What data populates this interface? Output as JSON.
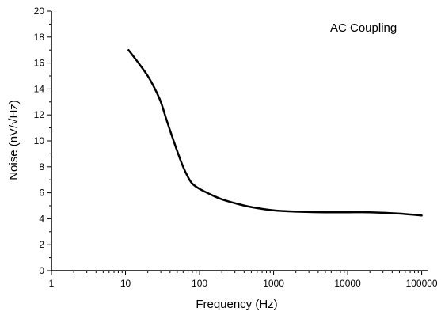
{
  "chart_data": {
    "type": "line",
    "title": "",
    "annotation": "AC Coupling",
    "xlabel": "Frequency (Hz)",
    "ylabel": "Noise (nV/√Hz)",
    "xscale": "log",
    "xlim": [
      1,
      120000
    ],
    "ylim": [
      0,
      20
    ],
    "x_ticks": [
      1,
      10,
      100,
      1000,
      10000,
      100000
    ],
    "x_tick_labels": [
      "1",
      "10",
      "100",
      "1000",
      "10000",
      "100000"
    ],
    "y_ticks": [
      0,
      2,
      4,
      6,
      8,
      10,
      12,
      14,
      16,
      18,
      20
    ],
    "y_tick_labels": [
      "0",
      "2",
      "4",
      "6",
      "8",
      "10",
      "12",
      "14",
      "16",
      "18",
      "20"
    ],
    "grid": false,
    "legend": "none",
    "line_color": "#000000",
    "series": [
      {
        "x": [
          11,
          15,
          20,
          25,
          30,
          35,
          40,
          50,
          60,
          70,
          80,
          100,
          150,
          200,
          300,
          500,
          1000,
          2000,
          5000,
          10000,
          20000,
          50000,
          100000
        ],
        "y": [
          17.0,
          16.0,
          15.0,
          14.0,
          13.0,
          11.8,
          10.8,
          9.2,
          8.0,
          7.2,
          6.7,
          6.3,
          5.8,
          5.5,
          5.2,
          4.9,
          4.65,
          4.55,
          4.5,
          4.5,
          4.5,
          4.4,
          4.25
        ]
      }
    ]
  }
}
